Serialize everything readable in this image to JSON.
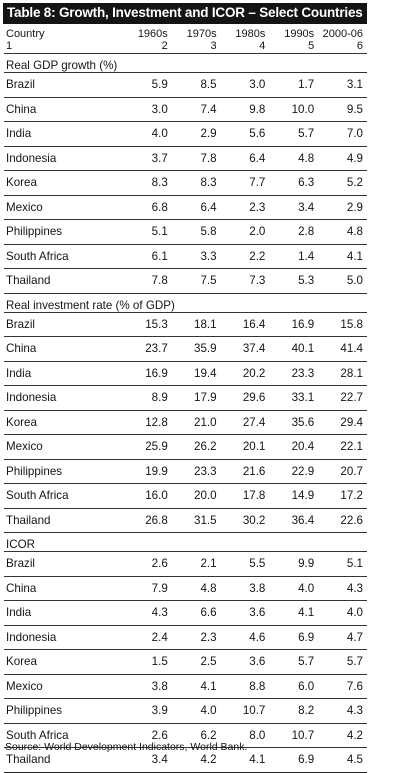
{
  "title": "Table 8: Growth, Investment and ICOR – Select Countries",
  "header": {
    "row1": [
      "Country",
      "1960s",
      "1970s",
      "1980s",
      "1990s",
      "2000-06"
    ],
    "row2": [
      "1",
      "2",
      "3",
      "4",
      "5",
      "6"
    ]
  },
  "sections": [
    {
      "title": "Real GDP growth (%)",
      "rows": [
        {
          "country": "Brazil",
          "values": [
            "5.9",
            "8.5",
            "3.0",
            "1.7",
            "3.1"
          ]
        },
        {
          "country": "China",
          "values": [
            "3.0",
            "7.4",
            "9.8",
            "10.0",
            "9.5"
          ]
        },
        {
          "country": "India",
          "values": [
            "4.0",
            "2.9",
            "5.6",
            "5.7",
            "7.0"
          ]
        },
        {
          "country": "Indonesia",
          "values": [
            "3.7",
            "7.8",
            "6.4",
            "4.8",
            "4.9"
          ]
        },
        {
          "country": "Korea",
          "values": [
            "8.3",
            "8.3",
            "7.7",
            "6.3",
            "5.2"
          ]
        },
        {
          "country": "Mexico",
          "values": [
            "6.8",
            "6.4",
            "2.3",
            "3.4",
            "2.9"
          ]
        },
        {
          "country": "Philippines",
          "values": [
            "5.1",
            "5.8",
            "2.0",
            "2.8",
            "4.8"
          ]
        },
        {
          "country": "South Africa",
          "values": [
            "6.1",
            "3.3",
            "2.2",
            "1.4",
            "4.1"
          ]
        },
        {
          "country": "Thailand",
          "values": [
            "7.8",
            "7.5",
            "7.3",
            "5.3",
            "5.0"
          ]
        }
      ]
    },
    {
      "title": "Real investment rate (% of GDP)",
      "rows": [
        {
          "country": "Brazil",
          "values": [
            "15.3",
            "18.1",
            "16.4",
            "16.9",
            "15.8"
          ]
        },
        {
          "country": "China",
          "values": [
            "23.7",
            "35.9",
            "37.4",
            "40.1",
            "41.4"
          ]
        },
        {
          "country": "India",
          "values": [
            "16.9",
            "19.4",
            "20.2",
            "23.3",
            "28.1"
          ]
        },
        {
          "country": "Indonesia",
          "values": [
            "8.9",
            "17.9",
            "29.6",
            "33.1",
            "22.7"
          ]
        },
        {
          "country": "Korea",
          "values": [
            "12.8",
            "21.0",
            "27.4",
            "35.6",
            "29.4"
          ]
        },
        {
          "country": "Mexico",
          "values": [
            "25.9",
            "26.2",
            "20.1",
            "20.4",
            "22.1"
          ]
        },
        {
          "country": "Philippines",
          "values": [
            "19.9",
            "23.3",
            "21.6",
            "22.9",
            "20.7"
          ]
        },
        {
          "country": "South Africa",
          "values": [
            "16.0",
            "20.0",
            "17.8",
            "14.9",
            "17.2"
          ]
        },
        {
          "country": "Thailand",
          "values": [
            "26.8",
            "31.5",
            "30.2",
            "36.4",
            "22.6"
          ]
        }
      ]
    },
    {
      "title": "ICOR",
      "rows": [
        {
          "country": "Brazil",
          "values": [
            "2.6",
            "2.1",
            "5.5",
            "9.9",
            "5.1"
          ]
        },
        {
          "country": "China",
          "values": [
            "7.9",
            "4.8",
            "3.8",
            "4.0",
            "4.3"
          ]
        },
        {
          "country": "India",
          "values": [
            "4.3",
            "6.6",
            "3.6",
            "4.1",
            "4.0"
          ]
        },
        {
          "country": "Indonesia",
          "values": [
            "2.4",
            "2.3",
            "4.6",
            "6.9",
            "4.7"
          ]
        },
        {
          "country": "Korea",
          "values": [
            "1.5",
            "2.5",
            "3.6",
            "5.7",
            "5.7"
          ]
        },
        {
          "country": "Mexico",
          "values": [
            "3.8",
            "4.1",
            "8.8",
            "6.0",
            "7.6"
          ]
        },
        {
          "country": "Philippines",
          "values": [
            "3.9",
            "4.0",
            "10.7",
            "8.2",
            "4.3"
          ]
        },
        {
          "country": "South Africa",
          "values": [
            "2.6",
            "6.2",
            "8.0",
            "10.7",
            "4.2"
          ]
        },
        {
          "country": "Thailand",
          "values": [
            "3.4",
            "4.2",
            "4.1",
            "6.9",
            "4.5"
          ]
        }
      ]
    }
  ],
  "source": "Source: World Development Indicators, World Bank."
}
